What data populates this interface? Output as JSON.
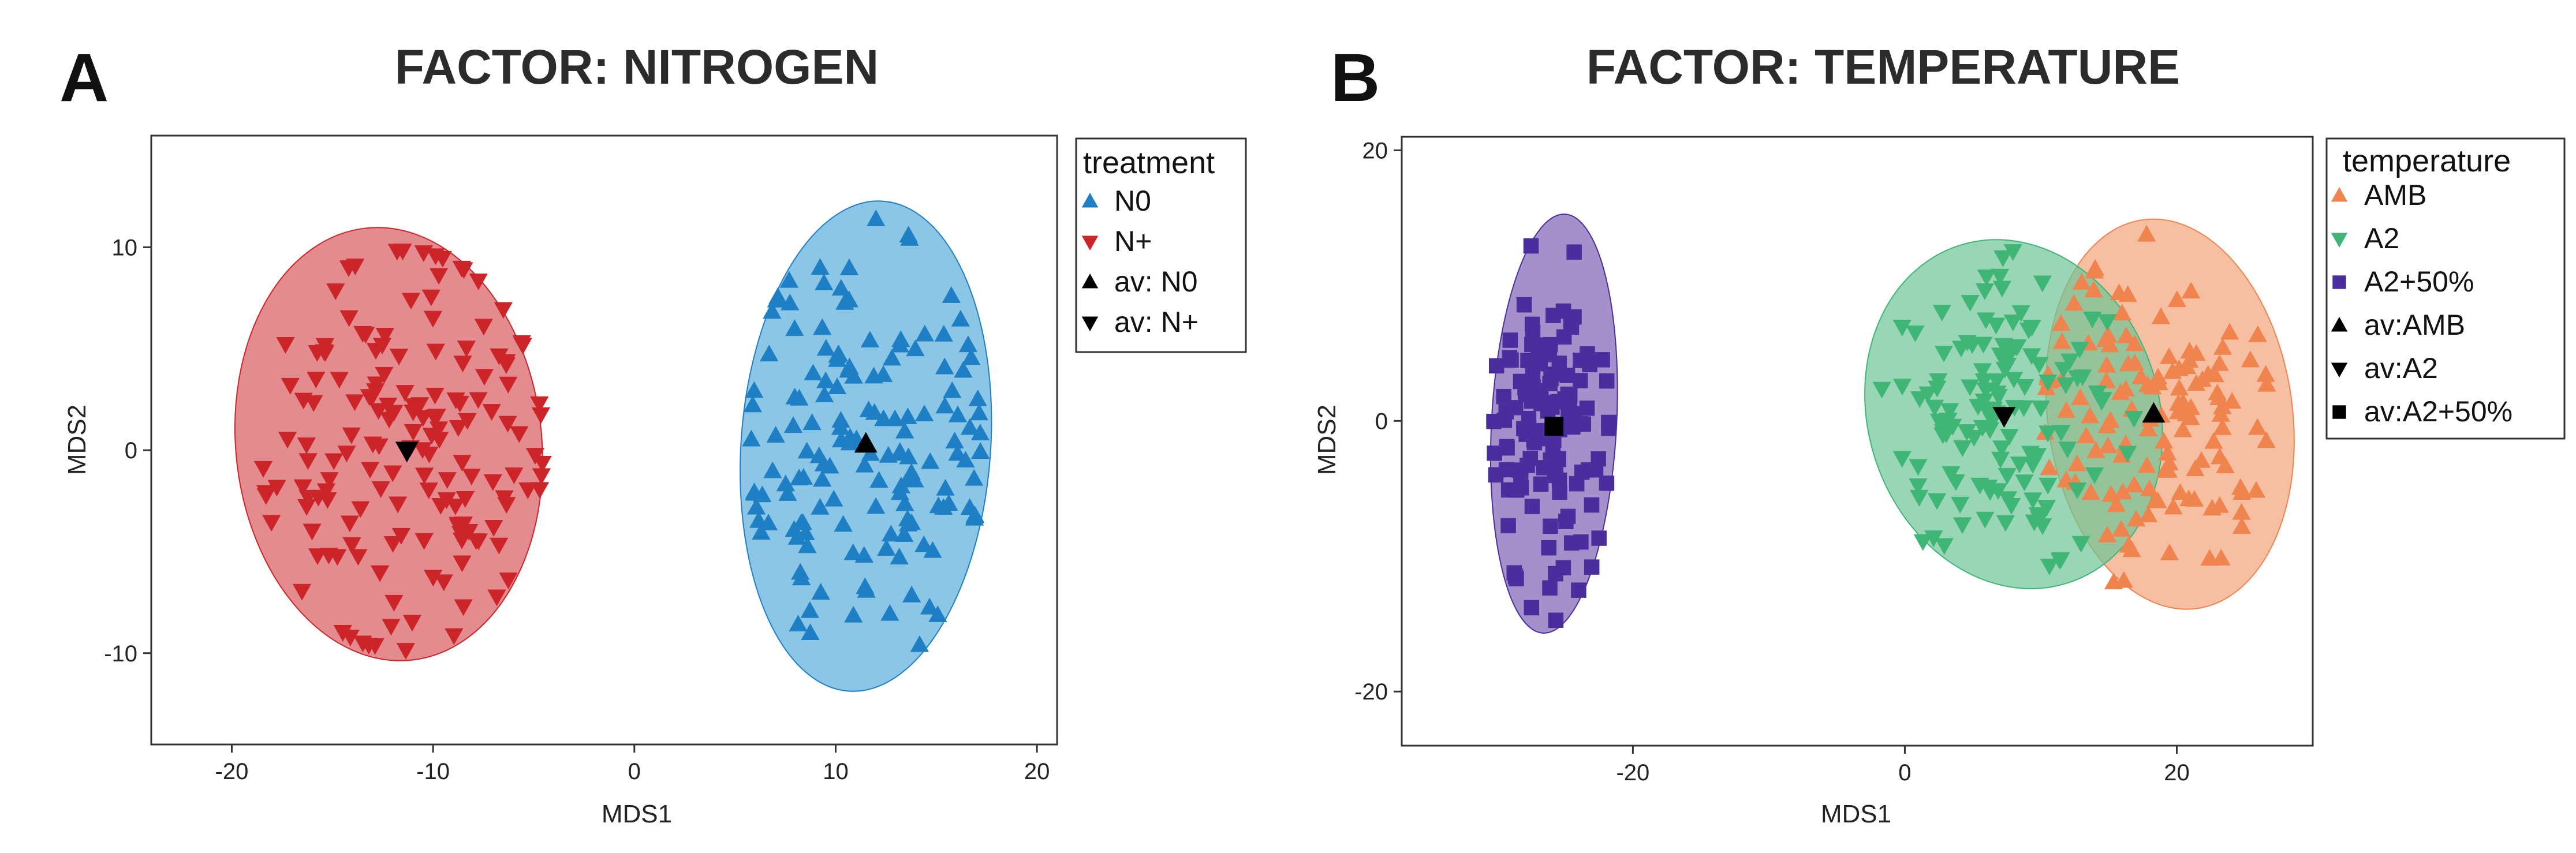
{
  "chart_data": [
    {
      "panel_letter": "A",
      "title": "FACTOR: NITROGEN",
      "type": "scatter",
      "xlabel": "MDS1",
      "ylabel": "MDS2",
      "xlim": [
        -24,
        21
      ],
      "ylim": [
        -14.5,
        15.5
      ],
      "xticks": [
        -20,
        -10,
        0,
        10,
        20
      ],
      "yticks": [
        -10,
        0,
        10
      ],
      "tick_labels_x": [
        "-20",
        "-10",
        "0",
        "10",
        "20"
      ],
      "tick_labels_y": [
        "-10",
        "0",
        "10"
      ],
      "grid": false,
      "legend": {
        "title": "treatment",
        "placement": "right",
        "entries": [
          {
            "label": "N0",
            "marker": "triangle-up",
            "color": "#1f7fc4"
          },
          {
            "label": "N+",
            "marker": "triangle-down",
            "color": "#cc2529"
          },
          {
            "label": "av: N0",
            "marker": "triangle-up",
            "color": "#000000"
          },
          {
            "label": "av: N+",
            "marker": "triangle-down",
            "color": "#000000"
          }
        ]
      },
      "series": [
        {
          "name": "N0",
          "marker": "triangle-up",
          "color": "#1f7fc4",
          "fill": "#5aaedc",
          "center": [
            11.5,
            0.3
          ],
          "spread": [
            3.6,
            5.4
          ],
          "count": 150,
          "seed": 11,
          "ellipse": {
            "cx": 11.5,
            "cy": 0.2,
            "rx": 6.2,
            "ry": 12.1,
            "angle": 4
          }
        },
        {
          "name": "N+",
          "marker": "triangle-down",
          "color": "#cc2529",
          "fill": "#d85a5f",
          "center": [
            -11.5,
            0.0
          ],
          "spread": [
            3.8,
            4.9
          ],
          "count": 160,
          "seed": 23,
          "ellipse": {
            "cx": -12.2,
            "cy": 0.3,
            "rx": 7.6,
            "ry": 10.7,
            "angle": -6
          }
        }
      ],
      "averages": [
        {
          "name": "av: N0",
          "x": 11.5,
          "y": 0.3,
          "marker": "triangle-up"
        },
        {
          "name": "av: N+",
          "x": -11.3,
          "y": 0.0,
          "marker": "triangle-down"
        }
      ]
    },
    {
      "panel_letter": "B",
      "title": "FACTOR: TEMPERATURE",
      "type": "scatter",
      "xlabel": "MDS1",
      "ylabel": "MDS2",
      "xlim": [
        -37,
        30
      ],
      "ylim": [
        -24,
        21
      ],
      "xticks": [
        -20,
        0,
        20
      ],
      "yticks": [
        -20,
        0,
        20
      ],
      "tick_labels_x": [
        "-20",
        "0",
        "20"
      ],
      "tick_labels_y": [
        "-20",
        "0",
        "20"
      ],
      "grid": false,
      "legend": {
        "title": "temperature",
        "placement": "right",
        "entries": [
          {
            "label": "AMB",
            "marker": "triangle-up",
            "color": "#f0844f"
          },
          {
            "label": "A2",
            "marker": "triangle-down",
            "color": "#3fb576"
          },
          {
            "label": "A2+50%",
            "marker": "square",
            "color": "#4b2e9e"
          },
          {
            "label": "av:AMB",
            "marker": "triangle-up",
            "color": "#000000"
          },
          {
            "label": "av:A2",
            "marker": "triangle-down",
            "color": "#000000"
          },
          {
            "label": "av:A2+50%",
            "marker": "square",
            "color": "#000000"
          }
        ]
      },
      "series": [
        {
          "name": "AMB",
          "marker": "triangle-up",
          "color": "#f0844f",
          "fill": "#f4a47a",
          "center": [
            18.5,
            0.5
          ],
          "spread": [
            4.3,
            5.6
          ],
          "count": 130,
          "seed": 37,
          "ellipse": {
            "cx": 19.5,
            "cy": 0.5,
            "rx": 9.0,
            "ry": 14.5,
            "angle": -8
          }
        },
        {
          "name": "A2",
          "marker": "triangle-down",
          "color": "#3fb576",
          "fill": "#6cc595",
          "center": [
            7.5,
            0.5
          ],
          "spread": [
            4.4,
            5.2
          ],
          "count": 130,
          "seed": 41,
          "ellipse": {
            "cx": 8.0,
            "cy": 0.5,
            "rx": 10.7,
            "ry": 13.1,
            "angle": -18
          }
        },
        {
          "name": "A2+50%",
          "marker": "square",
          "color": "#4b2e9e",
          "fill": "#7d62b5",
          "center": [
            -26.0,
            -0.5
          ],
          "spread": [
            2.6,
            6.0
          ],
          "count": 130,
          "seed": 53,
          "ellipse": {
            "cx": -25.8,
            "cy": -0.2,
            "rx": 4.6,
            "ry": 15.5,
            "angle": 3
          }
        }
      ],
      "averages": [
        {
          "name": "av:AMB",
          "x": 18.3,
          "y": 0.5,
          "marker": "triangle-up"
        },
        {
          "name": "av:A2",
          "x": 7.3,
          "y": 0.4,
          "marker": "triangle-down"
        },
        {
          "name": "av:A2+50%",
          "x": -25.8,
          "y": -0.4,
          "marker": "square"
        }
      ]
    }
  ]
}
